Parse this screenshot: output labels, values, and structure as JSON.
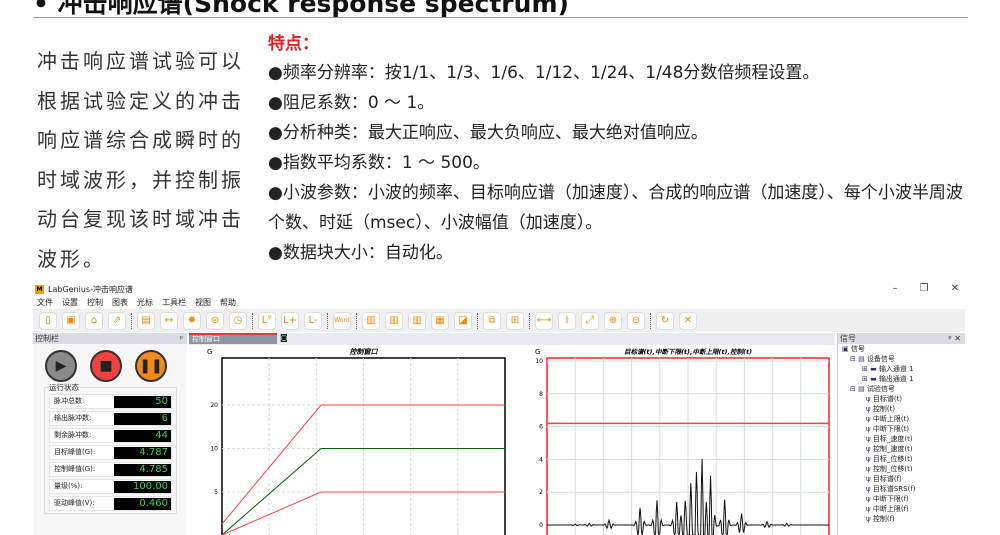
{
  "heading": "• 冲击响应谱(Shock response spectrum)",
  "intro": "冲击响应谱试验可以根据试验定义的冲击响应谱综合成瞬时的时域波形，并控制振动台复现该时域冲击波形。",
  "features": {
    "title": "特点：",
    "items": [
      "●频率分辨率：按1/1、1/3、1/6、1/12、1/24、1/48分数倍频程设置。",
      "●阻尼系数：0 ～ 1。",
      "●分析种类：最大正响应、最大负响应、最大绝对值响应。",
      "●指数平均系数：1 ～ 500。",
      "●小波参数：小波的频率、目标响应谱（加速度）、合成的响应谱（加速度）、每个小波半周波个数、时延（msec）、小波幅值（加速度）。",
      "●数据块大小：自动化。"
    ]
  },
  "app": {
    "title": "LabGenius-冲击响应谱",
    "menu": [
      "文件",
      "设置",
      "控制",
      "图表",
      "光标",
      "工具栏",
      "视图",
      "帮助"
    ],
    "toolbar": [
      "new",
      "save",
      "open",
      "export",
      "|",
      "clip",
      "width",
      "settings",
      "filter",
      "clock",
      "|",
      "L°",
      "L+",
      "L-",
      "|",
      "Word",
      "|",
      "bars1",
      "bars2",
      "bars3",
      "grid",
      "area",
      "|",
      "layout1",
      "layout2",
      "|",
      "fit-x",
      "fit-y",
      "fit-xy",
      "zoom-in",
      "zoom-out",
      "|",
      "refresh",
      "fullscreen"
    ],
    "control_panel": {
      "title": "控制栏",
      "status_title": "运行状态",
      "rows": [
        {
          "label": "脉冲总数:",
          "value": "50"
        },
        {
          "label": "输出脉冲数:",
          "value": "6"
        },
        {
          "label": "剩余脉冲数:",
          "value": "44"
        },
        {
          "label": "目标峰值(G):",
          "value": "4.787"
        },
        {
          "label": "控制峰值(G):",
          "value": "4.785"
        },
        {
          "label": "量级(%):",
          "value": "100.00"
        },
        {
          "label": "驱动峰值(V):",
          "value": "0.460"
        }
      ]
    },
    "tab": "控制窗口",
    "signal_panel": {
      "title": "信号",
      "tree": [
        "信号",
        "设备信号",
        "输入通道 1",
        "输出通道 1",
        "试验信号",
        "目标谱(t)",
        "控制(t)",
        "中断上限(t)",
        "中断下限(t)",
        "目标_速度(t)",
        "控制_速度(t)",
        "目标_位移(t)",
        "控制_位移(t)",
        "目标谱(f)",
        "目标谱SRS(f)",
        "中断下限(f)",
        "中断上限(f)",
        "控制(f)"
      ]
    },
    "colors": {
      "accent": "#f08a00",
      "limit": "#ff0000",
      "control": "#006400",
      "value": "#3ad05a"
    }
  },
  "chart_data": [
    {
      "type": "line",
      "title": "控制窗口",
      "ylabel": "G",
      "yscale": "log",
      "yticks": [
        5,
        10,
        20
      ],
      "series": [
        {
          "color": "#ff4040",
          "x": [
            0,
            0.35,
            1
          ],
          "y": [
            3,
            20,
            20
          ]
        },
        {
          "color": "#006400",
          "x": [
            0,
            0.35,
            1
          ],
          "y": [
            1.5,
            10,
            10
          ]
        },
        {
          "color": "#ff4040",
          "x": [
            0,
            0.35,
            1
          ],
          "y": [
            0.75,
            5,
            5
          ]
        }
      ]
    },
    {
      "type": "line",
      "title": "目标谱(t),中断下限(t),中断上限(t),控制(t)",
      "ylabel": "G",
      "ylim": [
        0,
        10
      ],
      "yticks": [
        0,
        2,
        4,
        6,
        8,
        10
      ],
      "limit": 6.2,
      "peaks": [
        [
          0.1,
          0.05
        ],
        [
          0.15,
          0.1
        ],
        [
          0.22,
          0.3
        ],
        [
          0.33,
          1.05
        ],
        [
          0.39,
          1.5
        ],
        [
          0.46,
          1.4
        ],
        [
          0.49,
          1.5
        ],
        [
          0.51,
          2.6
        ],
        [
          0.53,
          3.3
        ],
        [
          0.55,
          4.05
        ],
        [
          0.58,
          3.0
        ],
        [
          0.63,
          1.55
        ],
        [
          0.69,
          0.7
        ],
        [
          0.78,
          0.2
        ],
        [
          0.85,
          0.1
        ]
      ]
    }
  ]
}
